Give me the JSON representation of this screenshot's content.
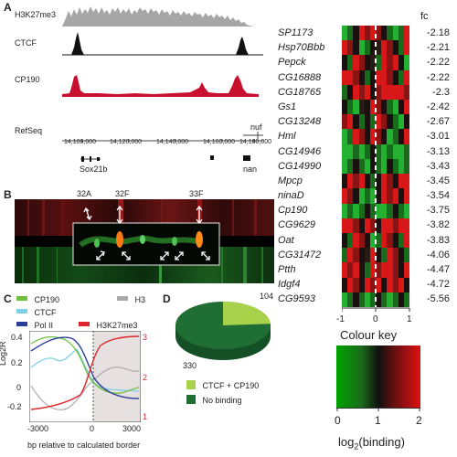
{
  "panels": {
    "a": "A",
    "b": "B",
    "c": "C",
    "d": "D"
  },
  "panelA": {
    "tracks": [
      "H3K27me3",
      "CTCF",
      "CP190",
      "RefSeq"
    ],
    "coords": [
      "14,100,000",
      "14,120,000",
      "14,140,000",
      "14,160,000",
      "14,180,000"
    ],
    "genes": [
      "nuf",
      "Sox21b",
      "nan"
    ],
    "colors": {
      "h3": "#a6a6a6",
      "ctcf": "#111111",
      "cp190": "#c8102e"
    }
  },
  "panelB": {
    "bands": [
      "32A",
      "32F",
      "33F"
    ]
  },
  "panelC": {
    "legend": [
      {
        "name": "CP190",
        "color": "#6fc13f"
      },
      {
        "name": "H3",
        "color": "#aaaaaa"
      },
      {
        "name": "CTCF",
        "color": "#7fcfe6"
      },
      {
        "name": "Pol II",
        "color": "#2b3f99"
      },
      {
        "name": "H3K27me3",
        "color": "#e0262c"
      }
    ],
    "ylabel": "Log2R",
    "xlabel": "bp relative to calculated border",
    "yticksLeft": [
      "0.4",
      "0.2",
      "0",
      "-0.2"
    ],
    "yticksRight": [
      "3",
      "2",
      "1"
    ],
    "xticks": [
      "-3000",
      "0",
      "3000"
    ]
  },
  "chart_data": {
    "type": "pie",
    "slices": [
      {
        "label": "CTCF + CP190",
        "value": 104,
        "color": "#a8d24a"
      },
      {
        "label": "No binding",
        "value": 330,
        "color": "#1f6f35"
      }
    ],
    "labels": [
      "104",
      "330"
    ]
  },
  "heatmap": {
    "fcLabel": "fc",
    "genes": [
      {
        "name": "SP1173",
        "fc": "-2.18"
      },
      {
        "name": "Hsp70Bbb",
        "fc": "-2.21"
      },
      {
        "name": "Pepck",
        "fc": "-2.22"
      },
      {
        "name": "CG16888",
        "fc": "-2.22"
      },
      {
        "name": "CG18765",
        "fc": "-2.3"
      },
      {
        "name": "Gs1",
        "fc": "-2.42"
      },
      {
        "name": "CG13248",
        "fc": "-2.67"
      },
      {
        "name": "Hml",
        "fc": "-3.01"
      },
      {
        "name": "CG14946",
        "fc": "-3.13"
      },
      {
        "name": "CG14990",
        "fc": "-3.43"
      },
      {
        "name": "Mpcp",
        "fc": "-3.45"
      },
      {
        "name": "ninaD",
        "fc": "-3.54"
      },
      {
        "name": "Cp190",
        "fc": "-3.75"
      },
      {
        "name": "CG9629",
        "fc": "-3.82"
      },
      {
        "name": "Oat",
        "fc": "-3.83"
      },
      {
        "name": "CG31472",
        "fc": "-4.06"
      },
      {
        "name": "Ptth",
        "fc": "-4.47"
      },
      {
        "name": "Idgf4",
        "fc": "-4.72"
      },
      {
        "name": "CG9593",
        "fc": "-5.56"
      }
    ],
    "xticks": [
      "-1",
      "0",
      "1"
    ]
  },
  "colourKey": {
    "title": "Colour key",
    "ticks": [
      "0",
      "1",
      "2"
    ],
    "label": "log",
    "sub": "2",
    "suffix": "(binding)"
  }
}
